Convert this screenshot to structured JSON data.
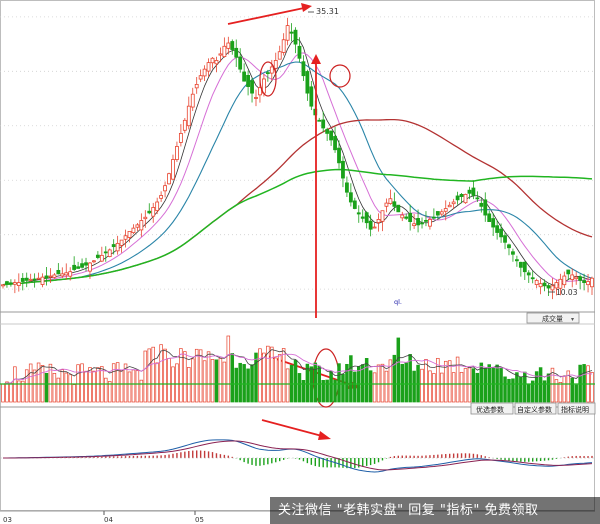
{
  "chart_data": [
    {
      "type": "candlestick",
      "title": "",
      "annotations": {
        "high_label": "35.31",
        "low_label": "10.03",
        "marker": "ql."
      },
      "series_colors": {
        "up": "#e8432e",
        "down": "#1aa11a",
        "ma5": "#333333",
        "ma10": "#d66fd6",
        "ma20": "#2a85a8",
        "ma60": "#b33232",
        "ma120": "#21b521"
      },
      "x": [
        0,
        1,
        2,
        3,
        4,
        5,
        6,
        7,
        8,
        9,
        10,
        11,
        12,
        13,
        14,
        15,
        16,
        17,
        18,
        19,
        20,
        21,
        22,
        23,
        24,
        25,
        26,
        27,
        28,
        29,
        30,
        31,
        32,
        33,
        34,
        35,
        36,
        37,
        38,
        39,
        40,
        41,
        42,
        43,
        44,
        45,
        46,
        47,
        48,
        49,
        50,
        51,
        52,
        53,
        54,
        55,
        56,
        57,
        58,
        59,
        60,
        61,
        62,
        63,
        64,
        65,
        66,
        67,
        68,
        69,
        70,
        71,
        72,
        73,
        74,
        75,
        76,
        77,
        78,
        79,
        80,
        81,
        82,
        83,
        84,
        85,
        86,
        87,
        88,
        89,
        90,
        91,
        92,
        93,
        94,
        95,
        96,
        97,
        98,
        99,
        100,
        101,
        102,
        103,
        104,
        105,
        106,
        107,
        108,
        109,
        110,
        111,
        112,
        113,
        114,
        115,
        116,
        117,
        118,
        119,
        120,
        121,
        122,
        123,
        124,
        125,
        126,
        127,
        128,
        129,
        130,
        131,
        132,
        133,
        134,
        135,
        136,
        137,
        138,
        139,
        140,
        141,
        142,
        143,
        144,
        145,
        146,
        147,
        148,
        149
      ],
      "close": [
        10.4,
        10.5,
        10.5,
        10.6,
        10.6,
        10.7,
        10.8,
        10.9,
        10.9,
        11.0,
        11.1,
        11.0,
        11.2,
        11.3,
        11.4,
        11.4,
        11.5,
        11.6,
        11.8,
        11.9,
        12.0,
        12.2,
        12.4,
        12.6,
        12.9,
        13.1,
        13.4,
        13.6,
        13.9,
        14.2,
        14.5,
        14.9,
        15.3,
        15.6,
        15.9,
        16.3,
        16.6,
        17.0,
        17.5,
        18.0,
        18.6,
        19.5,
        20.6,
        21.9,
        23.1,
        24.3,
        25.5,
        26.8,
        27.9,
        28.8,
        29.6,
        30.2,
        30.8,
        31.2,
        31.0,
        31.6,
        32.3,
        32.6,
        32.0,
        31.3,
        30.2,
        29.1,
        28.6,
        28.0,
        27.6,
        28.5,
        29.3,
        29.8,
        30.4,
        31.0,
        31.8,
        32.9,
        34.2,
        33.5,
        32.5,
        31.2,
        29.6,
        28.0,
        26.8,
        26.0,
        25.5,
        24.8,
        24.3,
        23.7,
        22.8,
        21.6,
        20.2,
        18.9,
        18.0,
        17.4,
        16.9,
        16.5,
        16.1,
        15.5,
        15.7,
        16.4,
        17.2,
        17.9,
        18.3,
        17.6,
        17.1,
        16.8,
        16.5,
        16.2,
        16.0,
        15.9,
        16.0,
        16.3,
        16.4,
        16.6,
        16.8,
        17.1,
        17.4,
        17.7,
        18.0,
        18.2,
        18.5,
        18.7,
        18.8,
        18.6,
        18.3,
        17.6,
        16.8,
        16.2,
        15.7,
        15.2,
        14.8,
        14.3,
        13.8,
        13.2,
        12.6,
        12.0,
        11.6,
        11.3,
        11.0,
        10.8,
        10.5,
        10.3,
        10.1,
        10.3,
        10.6,
        10.9,
        11.2,
        11.4,
        11.3,
        11.1,
        10.8,
        10.6,
        10.7,
        11.0
      ],
      "volume_series": [
        "vol",
        "vol_ma5",
        "vol_ma10"
      ],
      "indicator": "MACD"
    }
  ],
  "toolbar": {
    "volume_label": "成交量",
    "buttons": [
      "优选参数",
      "自定义参数",
      "指标说明"
    ]
  },
  "xaxis": {
    "labels": [
      "03",
      "04",
      "05"
    ]
  },
  "watermark": "关注微信 \"老韩实盘\" 回复 \"指标\" 免费领取"
}
